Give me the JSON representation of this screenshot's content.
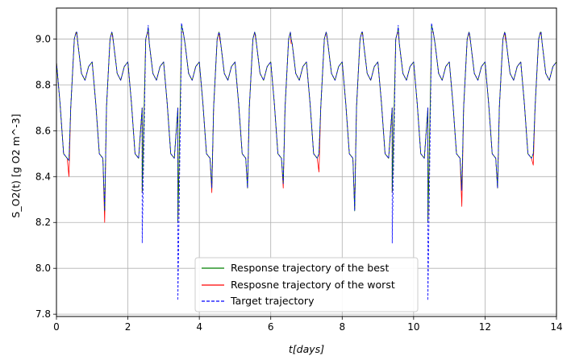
{
  "chart_data": {
    "type": "line",
    "title": "",
    "xlabel": "t[days]",
    "ylabel": "S_O2(t) [g O2 m^-3]",
    "xlim": [
      0,
      14
    ],
    "ylim": [
      7.79,
      9.135
    ],
    "xticks": [
      0,
      2,
      4,
      6,
      8,
      10,
      12,
      14
    ],
    "xtick_labels": [
      "0",
      "2",
      "4",
      "6",
      "8",
      "10",
      "12",
      "14"
    ],
    "yticks": [
      7.8,
      8.0,
      8.2,
      8.4,
      8.6,
      8.8,
      9.0
    ],
    "ytick_labels": [
      "7.8",
      "8.0",
      "8.2",
      "8.4",
      "8.6",
      "8.8",
      "9.0"
    ],
    "grid": true,
    "legend_position": "bottom-center",
    "daily_pattern": {
      "x_offset_days": [
        0.0,
        0.1,
        0.2,
        0.3,
        0.4,
        0.5,
        0.55,
        0.6,
        0.7,
        0.8,
        0.9,
        1.0
      ],
      "y_values": [
        8.9,
        8.72,
        8.5,
        8.48,
        8.7,
        9.0,
        9.03,
        8.98,
        8.85,
        8.82,
        8.88,
        8.9
      ]
    },
    "daily_minima": {
      "x": [
        0.35,
        1.35,
        2.4,
        3.4,
        4.35,
        5.35,
        6.35,
        7.35,
        8.35,
        9.4,
        10.4,
        11.35,
        12.35,
        13.35
      ],
      "target": [
        8.47,
        8.25,
        8.11,
        7.86,
        8.35,
        8.35,
        8.37,
        8.5,
        8.25,
        8.11,
        7.86,
        8.34,
        8.35,
        8.5
      ],
      "best": [
        8.47,
        8.25,
        8.33,
        8.2,
        8.35,
        8.35,
        8.37,
        8.5,
        8.25,
        8.33,
        8.2,
        8.34,
        8.35,
        8.5
      ],
      "worst": [
        8.4,
        8.2,
        8.33,
        8.2,
        8.33,
        8.35,
        8.35,
        8.42,
        8.26,
        8.33,
        8.2,
        8.27,
        8.35,
        8.45
      ]
    },
    "daily_maxima": {
      "x": [
        0.57,
        1.57,
        2.57,
        3.5,
        4.57,
        5.57,
        6.57,
        7.57,
        8.57,
        9.57,
        10.5,
        11.57,
        12.57,
        13.57
      ],
      "target": [
        9.03,
        9.02,
        9.06,
        9.07,
        9.02,
        9.02,
        9.0,
        9.02,
        9.03,
        9.06,
        9.07,
        9.02,
        9.02,
        9.03
      ],
      "best": [
        9.03,
        9.02,
        9.05,
        9.06,
        9.02,
        9.02,
        9.0,
        9.02,
        9.03,
        9.05,
        9.06,
        9.02,
        9.02,
        9.03
      ],
      "worst": [
        9.02,
        9.01,
        9.03,
        9.03,
        9.0,
        9.01,
        8.98,
        9.01,
        9.02,
        9.03,
        9.03,
        9.01,
        9.0,
        9.02
      ]
    },
    "series": [
      {
        "name": "Response trajectory of the best",
        "color": "#008000",
        "style": "solid"
      },
      {
        "name": "Resposne trajectory of the worst",
        "color": "#ff0000",
        "style": "solid"
      },
      {
        "name": "Target trajectory",
        "color": "#0000ff",
        "style": "dashed"
      }
    ]
  }
}
